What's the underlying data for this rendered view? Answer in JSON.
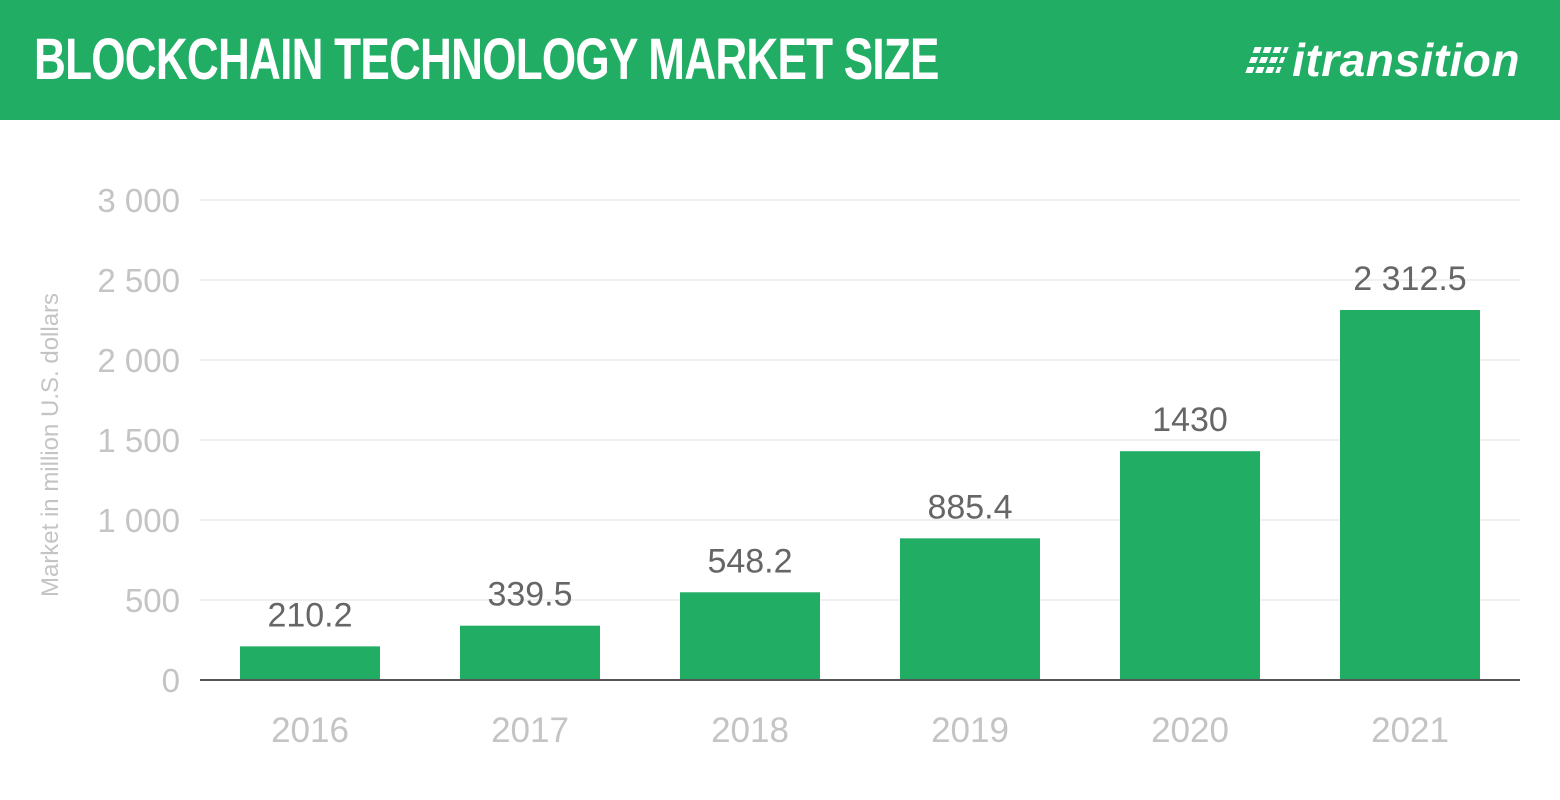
{
  "header": {
    "title": "BLOCKCHAIN TECHNOLOGY MARKET SIZE",
    "brand": "itransition",
    "brand_icon": "itransition-logo-mark"
  },
  "colors": {
    "header_bg": "#22ad65",
    "bar": "#22ad65",
    "tick_text": "#c4c4c4",
    "data_label": "#666666"
  },
  "chart_data": {
    "type": "bar",
    "categories": [
      "2016",
      "2017",
      "2018",
      "2019",
      "2020",
      "2021"
    ],
    "values": [
      210.2,
      339.5,
      548.2,
      885.4,
      1430,
      2312.5
    ],
    "value_labels": [
      "210.2",
      "339.5",
      "548.2",
      "885.4",
      "1430",
      "2 312.5"
    ],
    "ylabel": "Market in million U.S. dollars",
    "ylim": [
      0,
      3000
    ],
    "yticks": [
      0,
      500,
      1000,
      1500,
      2000,
      2500,
      3000
    ],
    "ytick_labels": [
      "0",
      "500",
      "1 000",
      "1 500",
      "2 000",
      "2 500",
      "3 000"
    ],
    "grid": true,
    "legend": "none"
  }
}
